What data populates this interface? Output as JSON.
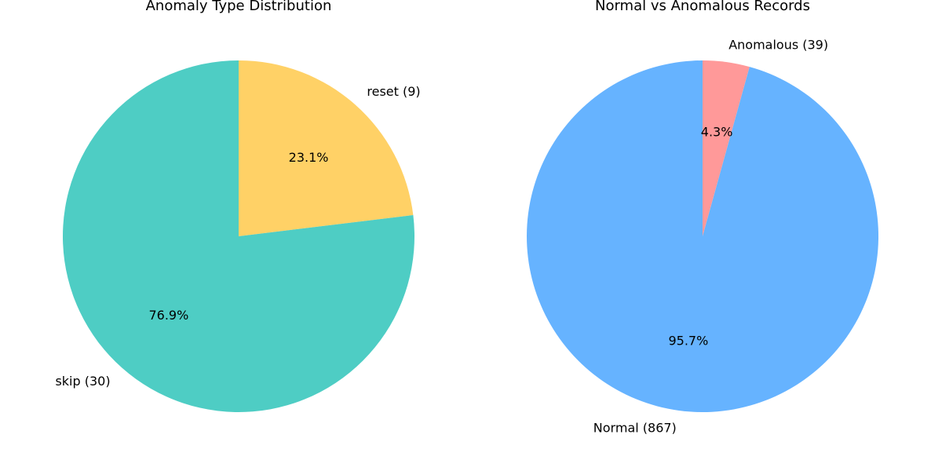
{
  "chart_data": [
    {
      "type": "pie",
      "title": "Anomaly Type Distribution",
      "slices": [
        {
          "label": "reset (9)",
          "value": 9,
          "percent_label": "23.1%",
          "color": "#FFD166"
        },
        {
          "label": "skip (30)",
          "value": 30,
          "percent_label": "76.9%",
          "color": "#4ECDC4"
        }
      ],
      "start_angle_deg": 90,
      "direction": "clockwise"
    },
    {
      "type": "pie",
      "title": "Normal vs Anomalous Records",
      "slices": [
        {
          "label": "Anomalous (39)",
          "value": 39,
          "percent_label": "4.3%",
          "color": "#FF9999"
        },
        {
          "label": "Normal (867)",
          "value": 867,
          "percent_label": "95.7%",
          "color": "#66B3FF"
        }
      ],
      "start_angle_deg": 90,
      "direction": "clockwise"
    }
  ]
}
